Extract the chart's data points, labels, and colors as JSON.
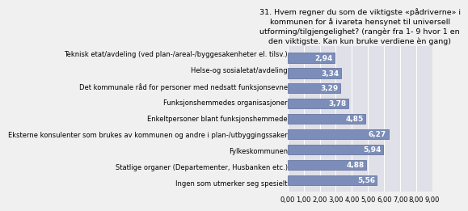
{
  "title": "31. Hvem regner du som de viktigste «pådriverne» i\nkommunen for å ivareta hensynet til universell\nutforming/tilgjengelighet? (rangèr fra 1- 9 hvor 1 en\nden viktigste. Kan kun bruke verdiene èn gang)",
  "categories": [
    "Teknisk etat/avdeling (ved plan-/areal-/byggesakenheter el. tilsv.)",
    "Helse-og sosialetat/avdeling",
    "Det kommunale råd for personer med nedsatt funksjonsevne",
    "Funksjonshemmedes organisasjoner",
    "Enkeltpersoner blant funksjonshemmede",
    "Eksterne konsulenter som brukes av kommunen og andre i plan-/utbyggingssaker",
    "Fylkeskommunen",
    "Statlige organer (Departementer, Husbanken etc.)",
    "Ingen som utmerker seg spesielt"
  ],
  "values": [
    2.94,
    3.34,
    3.29,
    3.78,
    4.85,
    6.27,
    5.94,
    4.88,
    5.56
  ],
  "bar_color": "#7B8DB8",
  "bar_edge_color": "#5A6A98",
  "background_color": "#F0F0F0",
  "plot_background_color": "#E0E0E8",
  "xlim": [
    0,
    9.0
  ],
  "xticks": [
    0.0,
    1.0,
    2.0,
    3.0,
    4.0,
    5.0,
    6.0,
    7.0,
    8.0,
    9.0
  ],
  "xtick_labels": [
    "0,00",
    "1,00",
    "2,00",
    "3,00",
    "4,00",
    "5,00",
    "6,00",
    "7,00",
    "8,00",
    "9,00"
  ],
  "value_fontsize": 6.5,
  "label_fontsize": 6,
  "title_fontsize": 6.8
}
